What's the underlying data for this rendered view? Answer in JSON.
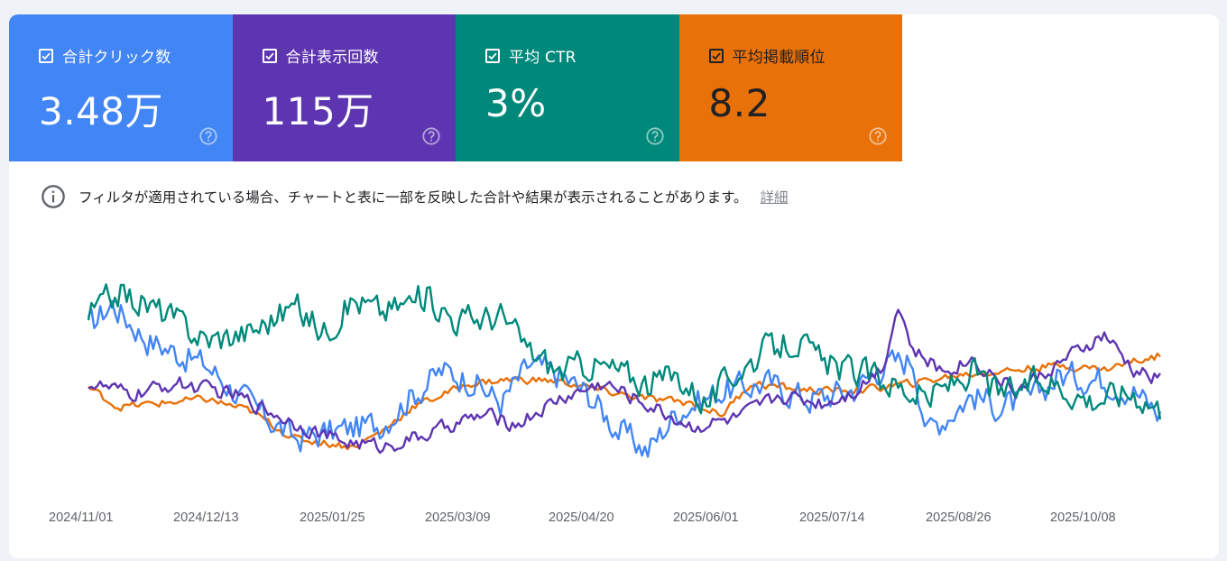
{
  "metrics": [
    {
      "key": "clicks",
      "label": "合計クリック数",
      "value": "3.48万",
      "color": "#4285f4",
      "checked": true
    },
    {
      "key": "impressions",
      "label": "合計表示回数",
      "value": "115万",
      "color": "#5e35b1",
      "checked": true
    },
    {
      "key": "ctr",
      "label": "平均 CTR",
      "value": "3%",
      "color": "#00897b",
      "checked": true
    },
    {
      "key": "position",
      "label": "平均掲載順位",
      "value": "8.2",
      "color": "#e8710a",
      "checked": true
    }
  ],
  "icons": {
    "checkbox": "checkbox-checked-icon",
    "help": "help-icon",
    "info": "info-icon"
  },
  "notice": {
    "text": "フィルタが適用されている場合、チャートと表に一部を反映した合計や結果が表示されることがあります。",
    "link": "詳細"
  },
  "chart_data": {
    "type": "line",
    "x_tick_labels": [
      "2024/11/01",
      "2024/12/13",
      "2025/01/25",
      "2025/03/09",
      "2025/04/20",
      "2025/06/01",
      "2025/07/14",
      "2025/08/26",
      "2025/10/08"
    ],
    "x_range": [
      "2024/11/01",
      "2025/10/30"
    ],
    "y_axis_visible": false,
    "grid": false,
    "series": [
      {
        "name": "合計クリック数",
        "color": "#4285f4",
        "anchors": [
          [
            0,
            0.74
          ],
          [
            8,
            0.86
          ],
          [
            20,
            0.68
          ],
          [
            40,
            0.55
          ],
          [
            55,
            0.35
          ],
          [
            70,
            0.18
          ],
          [
            85,
            0.22
          ],
          [
            100,
            0.26
          ],
          [
            110,
            0.4
          ],
          [
            120,
            0.52
          ],
          [
            130,
            0.48
          ],
          [
            140,
            0.36
          ],
          [
            150,
            0.55
          ],
          [
            160,
            0.5
          ],
          [
            170,
            0.4
          ],
          [
            180,
            0.22
          ],
          [
            190,
            0.12
          ],
          [
            200,
            0.32
          ],
          [
            215,
            0.42
          ],
          [
            230,
            0.46
          ],
          [
            245,
            0.38
          ],
          [
            260,
            0.43
          ],
          [
            270,
            0.55
          ],
          [
            280,
            0.58
          ],
          [
            285,
            0.22
          ],
          [
            300,
            0.4
          ],
          [
            310,
            0.34
          ],
          [
            320,
            0.38
          ],
          [
            330,
            0.5
          ],
          [
            345,
            0.48
          ],
          [
            355,
            0.42
          ],
          [
            364,
            0.3
          ]
        ],
        "noise": 0.07
      },
      {
        "name": "合計表示回数",
        "color": "#5e35b1",
        "anchors": [
          [
            0,
            0.46
          ],
          [
            15,
            0.4
          ],
          [
            30,
            0.46
          ],
          [
            50,
            0.4
          ],
          [
            70,
            0.26
          ],
          [
            85,
            0.17
          ],
          [
            100,
            0.14
          ],
          [
            115,
            0.2
          ],
          [
            125,
            0.26
          ],
          [
            135,
            0.3
          ],
          [
            145,
            0.25
          ],
          [
            160,
            0.38
          ],
          [
            175,
            0.46
          ],
          [
            190,
            0.35
          ],
          [
            205,
            0.24
          ],
          [
            220,
            0.28
          ],
          [
            235,
            0.4
          ],
          [
            250,
            0.36
          ],
          [
            260,
            0.42
          ],
          [
            270,
            0.55
          ],
          [
            275,
            0.86
          ],
          [
            280,
            0.62
          ],
          [
            290,
            0.52
          ],
          [
            300,
            0.58
          ],
          [
            315,
            0.42
          ],
          [
            330,
            0.56
          ],
          [
            345,
            0.7
          ],
          [
            355,
            0.52
          ],
          [
            364,
            0.48
          ]
        ],
        "noise": 0.035
      },
      {
        "name": "平均 CTR",
        "color": "#00897b",
        "anchors": [
          [
            0,
            0.8
          ],
          [
            10,
            0.92
          ],
          [
            25,
            0.82
          ],
          [
            40,
            0.68
          ],
          [
            55,
            0.72
          ],
          [
            70,
            0.85
          ],
          [
            80,
            0.72
          ],
          [
            90,
            0.88
          ],
          [
            100,
            0.82
          ],
          [
            115,
            0.9
          ],
          [
            125,
            0.78
          ],
          [
            140,
            0.8
          ],
          [
            150,
            0.62
          ],
          [
            160,
            0.52
          ],
          [
            170,
            0.56
          ],
          [
            180,
            0.52
          ],
          [
            190,
            0.46
          ],
          [
            200,
            0.5
          ],
          [
            210,
            0.36
          ],
          [
            220,
            0.52
          ],
          [
            230,
            0.62
          ],
          [
            240,
            0.68
          ],
          [
            250,
            0.55
          ],
          [
            260,
            0.52
          ],
          [
            270,
            0.48
          ],
          [
            285,
            0.38
          ],
          [
            300,
            0.52
          ],
          [
            310,
            0.4
          ],
          [
            325,
            0.48
          ],
          [
            340,
            0.38
          ],
          [
            355,
            0.42
          ],
          [
            364,
            0.33
          ]
        ],
        "noise": 0.07
      },
      {
        "name": "平均掲載順位",
        "color": "#e8710a",
        "anchors": [
          [
            0,
            0.44
          ],
          [
            10,
            0.34
          ],
          [
            25,
            0.36
          ],
          [
            40,
            0.38
          ],
          [
            55,
            0.32
          ],
          [
            70,
            0.18
          ],
          [
            80,
            0.16
          ],
          [
            90,
            0.14
          ],
          [
            100,
            0.22
          ],
          [
            110,
            0.34
          ],
          [
            130,
            0.46
          ],
          [
            145,
            0.48
          ],
          [
            160,
            0.47
          ],
          [
            175,
            0.42
          ],
          [
            190,
            0.38
          ],
          [
            205,
            0.36
          ],
          [
            215,
            0.3
          ],
          [
            225,
            0.46
          ],
          [
            235,
            0.44
          ],
          [
            250,
            0.42
          ],
          [
            265,
            0.43
          ],
          [
            280,
            0.46
          ],
          [
            295,
            0.5
          ],
          [
            310,
            0.52
          ],
          [
            330,
            0.55
          ],
          [
            345,
            0.53
          ],
          [
            355,
            0.57
          ],
          [
            364,
            0.6
          ]
        ],
        "noise": 0.018
      }
    ]
  }
}
